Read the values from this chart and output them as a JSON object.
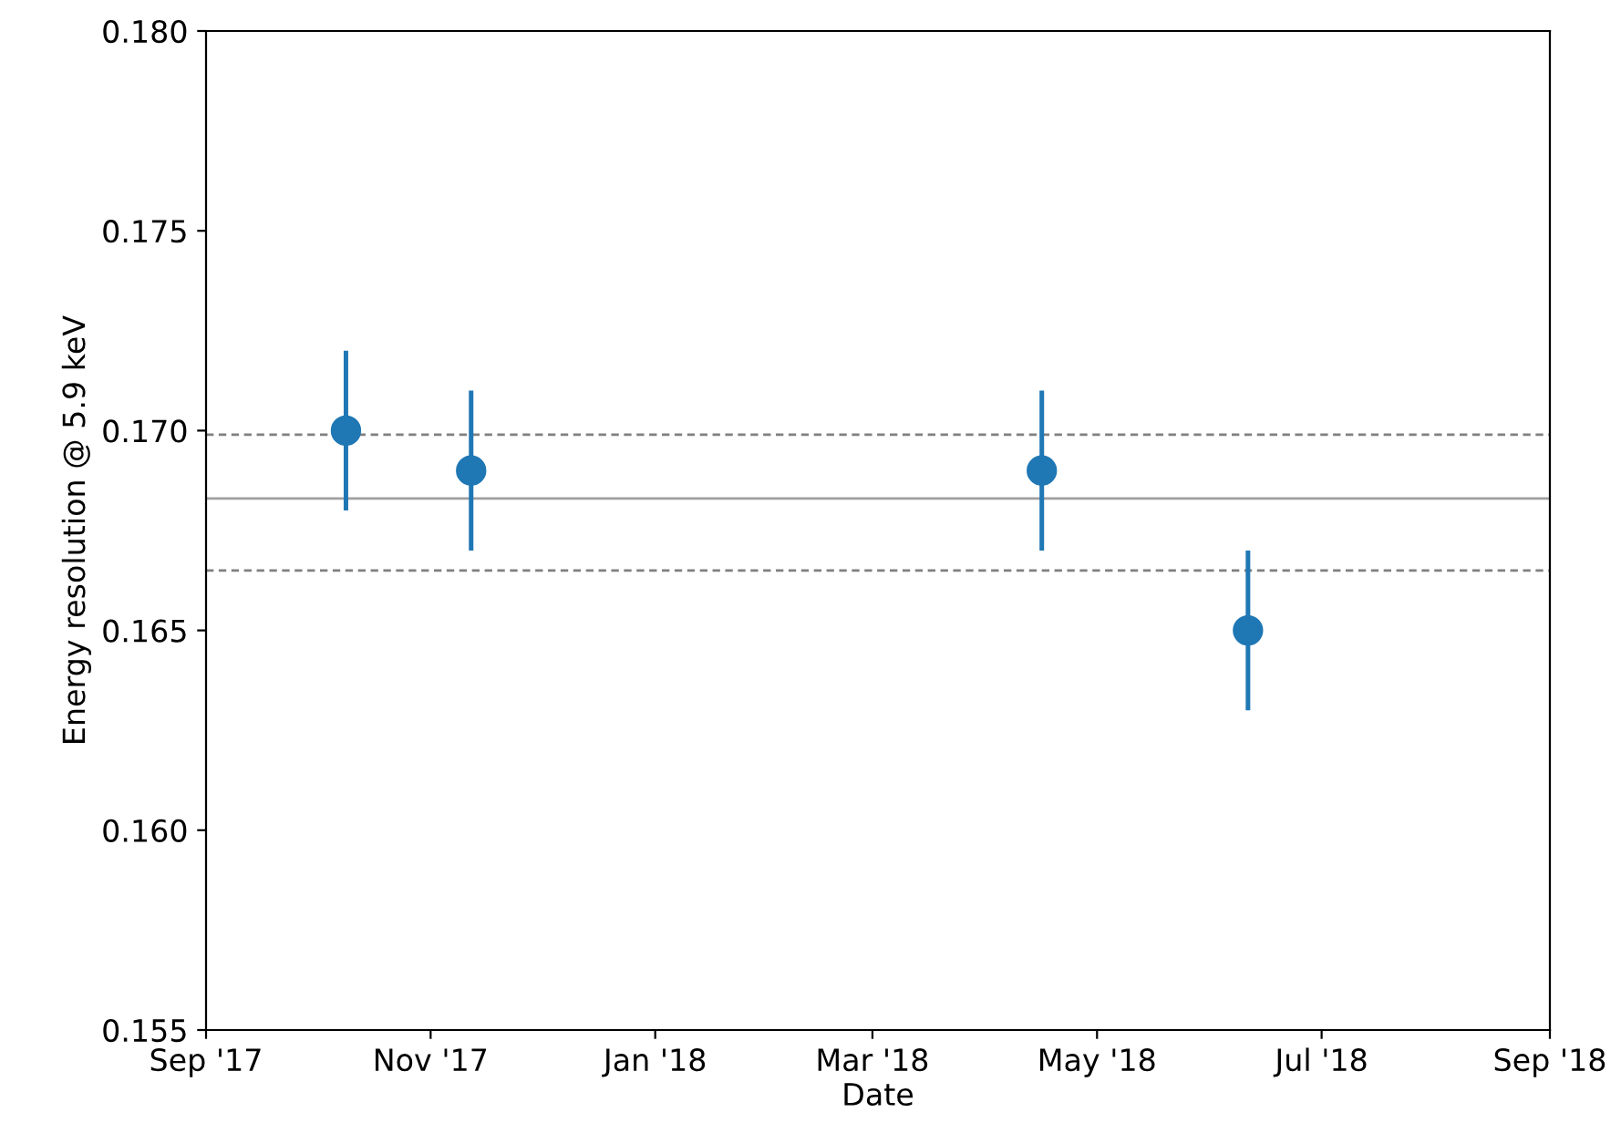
{
  "chart_data": {
    "type": "scatter",
    "xlabel": "Date",
    "ylabel": "Energy resolution @ 5.9 keV",
    "x": [
      "2017-10-09",
      "2017-11-12",
      "2018-04-16",
      "2018-06-11"
    ],
    "series": [
      {
        "color": "#1f77b4",
        "values": [
          0.17,
          0.169,
          0.169,
          0.165
        ],
        "errors": [
          0.002,
          0.002,
          0.002,
          0.002
        ]
      }
    ],
    "marker": "circle",
    "grid": false,
    "legend": false,
    "xlim": [
      "2017-09-01",
      "2018-09-01"
    ],
    "xticks": [
      {
        "value": "2017-09-01",
        "label": "Sep '17"
      },
      {
        "value": "2017-11-01",
        "label": "Nov '17"
      },
      {
        "value": "2018-01-01",
        "label": "Jan '18"
      },
      {
        "value": "2018-03-01",
        "label": "Mar '18"
      },
      {
        "value": "2018-05-01",
        "label": "May '18"
      },
      {
        "value": "2018-07-01",
        "label": "Jul '18"
      },
      {
        "value": "2018-09-01",
        "label": "Sep '18"
      }
    ],
    "ylim": [
      0.155,
      0.18
    ],
    "yticks": [
      {
        "value": 0.155,
        "label": "0.155"
      },
      {
        "value": 0.16,
        "label": "0.160"
      },
      {
        "value": 0.165,
        "label": "0.165"
      },
      {
        "value": 0.17,
        "label": "0.170"
      },
      {
        "value": 0.175,
        "label": "0.175"
      },
      {
        "value": 0.18,
        "label": "0.180"
      }
    ],
    "ref_lines": [
      {
        "axis": "y",
        "value": 0.1683,
        "color": "#a0a0a0",
        "line_style": "solid"
      },
      {
        "axis": "y",
        "value": 0.1699,
        "color": "#808080",
        "line_style": "dashed"
      },
      {
        "axis": "y",
        "value": 0.1665,
        "color": "#808080",
        "line_style": "dashed"
      }
    ]
  }
}
